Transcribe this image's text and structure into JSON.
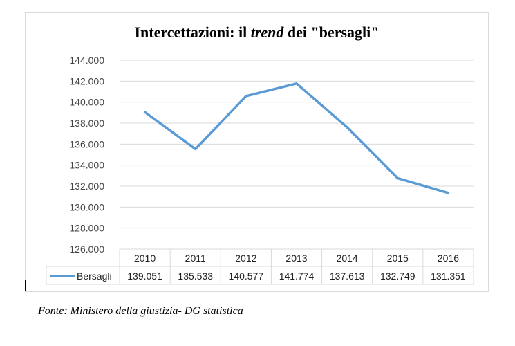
{
  "chart_data": {
    "type": "line",
    "title": {
      "prefix": "Intercettazioni: il ",
      "emphasis": "trend",
      "suffix": " dei \"bersagli\""
    },
    "categories": [
      "2010",
      "2011",
      "2012",
      "2013",
      "2014",
      "2015",
      "2016"
    ],
    "series": [
      {
        "name": "Bersagli",
        "values": [
          139051,
          135533,
          140577,
          141774,
          137613,
          132749,
          131351
        ],
        "value_labels": [
          "139.051",
          "135.533",
          "140.577",
          "141.774",
          "137.613",
          "132.749",
          "131.351"
        ],
        "color": "#5b9bd5"
      }
    ],
    "ylim": [
      126000,
      144000
    ],
    "yticks": [
      126000,
      128000,
      130000,
      132000,
      134000,
      136000,
      138000,
      140000,
      142000,
      144000
    ],
    "ytick_labels": [
      "126.000",
      "128.000",
      "130.000",
      "132.000",
      "134.000",
      "136.000",
      "138.000",
      "140.000",
      "142.000",
      "144.000"
    ],
    "grid": true,
    "data_table": true,
    "gridline_color": "#d9d9d9"
  },
  "source": "Fonte: Ministero della giustizia- DG statistica"
}
